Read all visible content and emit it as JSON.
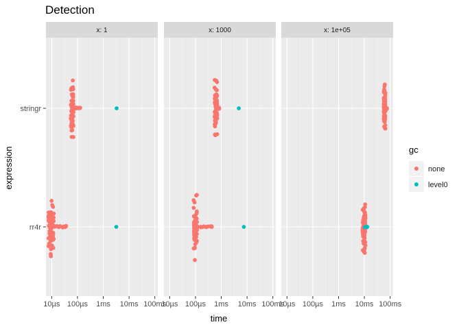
{
  "chart_data": {
    "type": "scatter",
    "title": "Detection",
    "xlabel": "time",
    "ylabel": "expression",
    "x_scale": "log10",
    "x_unit": "seconds",
    "xlim": [
      6e-06,
      0.13
    ],
    "x_ticks": [
      1e-05,
      0.0001,
      0.001,
      0.01,
      0.1
    ],
    "x_tick_labels": [
      "10µs",
      "100µs",
      "1ms",
      "10ms",
      "100ms"
    ],
    "categories": [
      "stringr",
      "rr4r"
    ],
    "grid": true,
    "facets": [
      {
        "label": "x: 1",
        "groups": [
          {
            "expression": "stringr",
            "gc": "none",
            "range": [
              5.5e-05,
              7e-05
            ],
            "spread_max": 0.00014
          },
          {
            "expression": "stringr",
            "gc": "level0",
            "values": [
              0.0033
            ]
          },
          {
            "expression": "rr4r",
            "gc": "none",
            "range": [
              7.5e-06,
              1.2e-05
            ],
            "spread_max": 4e-05
          },
          {
            "expression": "rr4r",
            "gc": "level0",
            "values": [
              0.0032
            ]
          }
        ]
      },
      {
        "label": "x: 1000",
        "groups": [
          {
            "expression": "stringr",
            "gc": "none",
            "range": [
              0.00055,
              0.0007
            ],
            "spread_max": 0.00085
          },
          {
            "expression": "stringr",
            "gc": "level0",
            "values": [
              0.0048
            ]
          },
          {
            "expression": "rr4r",
            "gc": "none",
            "range": [
              8.5e-05,
              0.000115
            ],
            "spread_max": 0.00045
          },
          {
            "expression": "rr4r",
            "gc": "level0",
            "values": [
              0.0075
            ]
          }
        ]
      },
      {
        "label": "x: 1e+05",
        "groups": [
          {
            "expression": "stringr",
            "gc": "none",
            "range": [
              0.056,
              0.066
            ],
            "spread_max": 0.075
          },
          {
            "expression": "rr4r",
            "gc": "none",
            "range": [
              0.0085,
              0.011
            ],
            "spread_max": 0.013
          },
          {
            "expression": "rr4r",
            "gc": "level0",
            "values": [
              0.0105,
              0.012,
              0.013
            ]
          }
        ]
      }
    ],
    "legend": {
      "title": "gc",
      "position": "right",
      "items": [
        {
          "label": "none",
          "color": "#F8766D"
        },
        {
          "label": "level0",
          "color": "#00BFC4"
        }
      ]
    }
  }
}
